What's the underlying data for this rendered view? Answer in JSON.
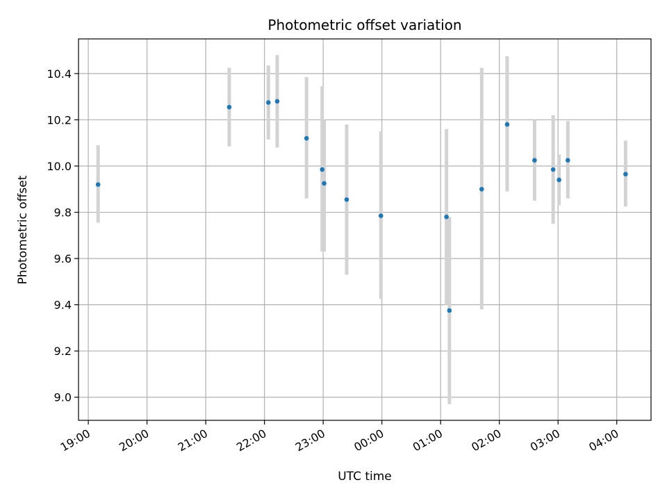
{
  "chart_data": {
    "type": "scatter",
    "title": "Photometric offset variation",
    "xlabel": "UTC time",
    "ylabel": "Photometric offset",
    "x_scale": "time",
    "xlim": [
      "18:50",
      "04:35"
    ],
    "ylim": [
      8.9,
      10.55
    ],
    "x_ticks": [
      "19:00",
      "20:00",
      "21:00",
      "22:00",
      "23:00",
      "00:00",
      "01:00",
      "02:00",
      "03:00",
      "04:00"
    ],
    "y_ticks": [
      9.0,
      9.2,
      9.4,
      9.6,
      9.8,
      10.0,
      10.2,
      10.4
    ],
    "y_tick_labels": [
      "9.0",
      "9.2",
      "9.4",
      "9.6",
      "9.8",
      "10.0",
      "10.2",
      "10.4"
    ],
    "grid": true,
    "point_color": "#1f77b4",
    "errorbar_color": "#d3d3d3",
    "points": [
      {
        "time": "19:10",
        "y": 9.92,
        "err_low": 9.755,
        "err_high": 10.09
      },
      {
        "time": "21:24",
        "y": 10.255,
        "err_low": 10.085,
        "err_high": 10.425
      },
      {
        "time": "22:04",
        "y": 10.275,
        "err_low": 10.115,
        "err_high": 10.435
      },
      {
        "time": "22:13",
        "y": 10.28,
        "err_low": 10.08,
        "err_high": 10.48
      },
      {
        "time": "22:43",
        "y": 10.12,
        "err_low": 9.86,
        "err_high": 10.385
      },
      {
        "time": "22:59",
        "y": 9.985,
        "err_low": 9.63,
        "err_high": 10.345
      },
      {
        "time": "23:01",
        "y": 9.925,
        "err_low": 9.63,
        "err_high": 10.2
      },
      {
        "time": "23:24",
        "y": 9.855,
        "err_low": 9.53,
        "err_high": 10.18
      },
      {
        "time": "23:59",
        "y": 9.785,
        "err_low": 9.425,
        "err_high": 10.15
      },
      {
        "time": "01:06",
        "y": 9.78,
        "err_low": 9.4,
        "err_high": 10.16
      },
      {
        "time": "01:09",
        "y": 9.375,
        "err_low": 8.97,
        "err_high": 9.78
      },
      {
        "time": "01:42",
        "y": 9.9,
        "err_low": 9.38,
        "err_high": 10.425
      },
      {
        "time": "02:08",
        "y": 10.18,
        "err_low": 9.89,
        "err_high": 10.475
      },
      {
        "time": "02:36",
        "y": 10.025,
        "err_low": 9.85,
        "err_high": 10.2
      },
      {
        "time": "02:55",
        "y": 9.985,
        "err_low": 9.75,
        "err_high": 10.22
      },
      {
        "time": "03:01",
        "y": 9.94,
        "err_low": 9.83,
        "err_high": 10.05
      },
      {
        "time": "03:10",
        "y": 10.025,
        "err_low": 9.86,
        "err_high": 10.195
      },
      {
        "time": "04:09",
        "y": 9.965,
        "err_low": 9.825,
        "err_high": 10.11
      }
    ]
  }
}
